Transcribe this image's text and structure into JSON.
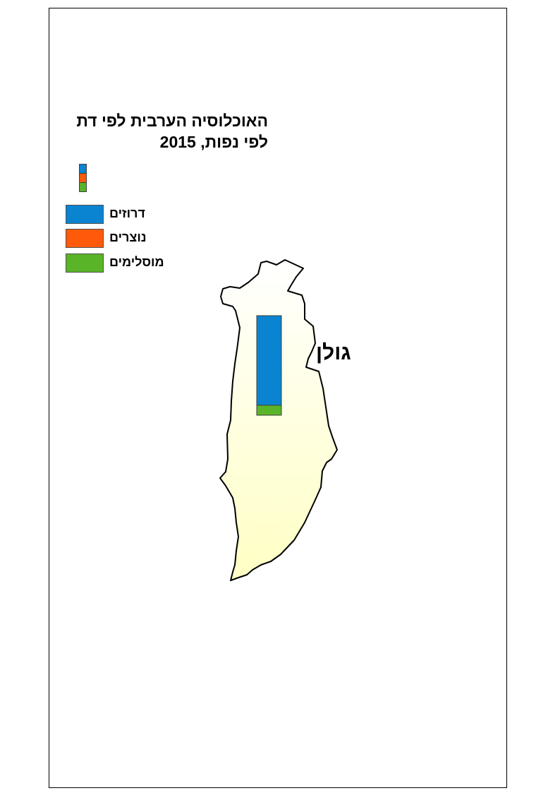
{
  "map": {
    "title_line1": "האוכלוסיה הערבית לפי דת",
    "title_line2": "לפי נפות, 2015",
    "region_label": "גולן"
  },
  "legend": {
    "items": [
      {
        "label": "דרוזים",
        "color": "#0a84d0"
      },
      {
        "label": "נוצרים",
        "color": "#ff5a0a"
      },
      {
        "label": "מוסלימים",
        "color": "#5ab428"
      }
    ]
  },
  "chart_data": {
    "type": "bar",
    "title": "האוכלוסיה הערבית לפי דת לפי נפות, 2015",
    "categories": [
      "גולן"
    ],
    "series": [
      {
        "name": "דרוזים",
        "values": [
          90
        ]
      },
      {
        "name": "נוצרים",
        "values": [
          0
        ]
      },
      {
        "name": "מוסלימים",
        "values": [
          10
        ]
      }
    ],
    "stacked": true
  }
}
